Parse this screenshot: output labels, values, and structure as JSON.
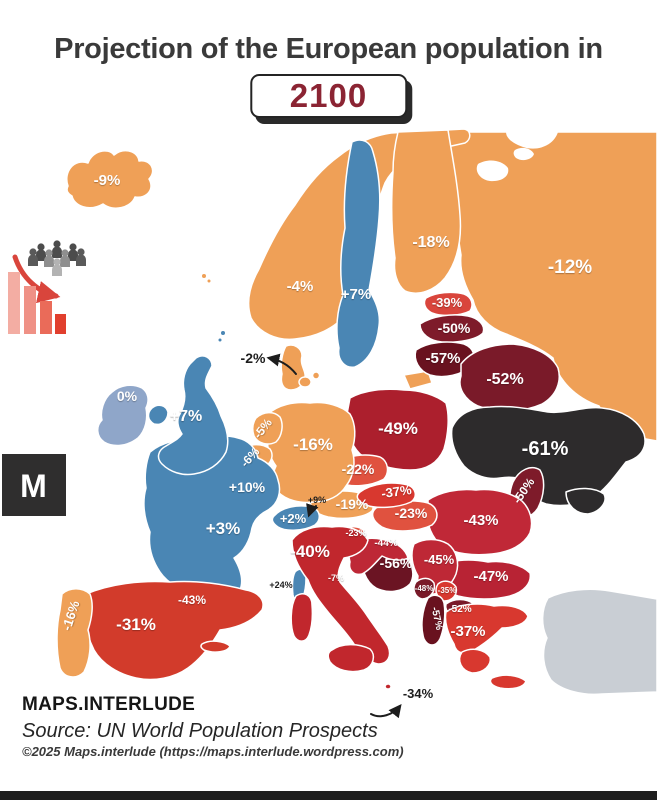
{
  "title": "Projection of the European population in",
  "year_badge": "2100",
  "logo": {
    "letter": "M"
  },
  "footer": {
    "brand": "MAPS.INTERLUDE",
    "source": "Source: UN World Population Prospects",
    "copyright": "©2025 Maps.interlude (https://maps.interlude.wordpress.com)"
  },
  "palette": {
    "growth_blue": "#4A86B4",
    "stable_blue_gray": "#8FA6C9",
    "mild_decline_orange": "#EFA057",
    "decline_red_orange": "#E0523F",
    "decline_red": "#D23B2B",
    "strong_decline_crimson": "#C02837",
    "severe_decline_maroon": "#7A1A29",
    "extreme_decline_black": "#2D2B2C",
    "no_data_gray": "#C9CED4",
    "year_text": "#8B2433",
    "icon_arrow_red": "#D9453C"
  },
  "icons": [
    "population-decline-icon",
    "declining-bars-icon",
    "maps-interlude-logo"
  ],
  "map": {
    "countries": [
      {
        "id": "russia",
        "name": "Russia",
        "label": "-12%",
        "value": -12,
        "color": "#EFA057"
      },
      {
        "id": "norway",
        "name": "Norway",
        "label": "-4%",
        "value": -4,
        "color": "#EFA057"
      },
      {
        "id": "finland",
        "name": "Finland",
        "label": "-18%",
        "value": -18,
        "color": "#EFA057"
      },
      {
        "id": "sweden",
        "name": "Sweden",
        "label": "+7%",
        "value": 7,
        "color": "#4A86B4"
      },
      {
        "id": "kaliningrad",
        "name": "Kaliningrad (Russia)",
        "label": "",
        "value": -12,
        "color": "#EFA057"
      },
      {
        "id": "estonia",
        "name": "Estonia",
        "label": "-39%",
        "value": -39,
        "color": "#D9453C"
      },
      {
        "id": "latvia",
        "name": "Latvia",
        "label": "-50%",
        "value": -50,
        "color": "#7E1B2A"
      },
      {
        "id": "lithuania",
        "name": "Lithuania",
        "label": "-57%",
        "value": -57,
        "color": "#69121F"
      },
      {
        "id": "belarus",
        "name": "Belarus",
        "label": "-52%",
        "value": -52,
        "color": "#7A1A29"
      },
      {
        "id": "poland",
        "name": "Poland",
        "label": "-49%",
        "value": -49,
        "color": "#AC1F2D"
      },
      {
        "id": "ukraine",
        "name": "Ukraine",
        "label": "-61%",
        "value": -61,
        "color": "#2D2B2C"
      },
      {
        "id": "moldova",
        "name": "Moldova",
        "label": "-50%",
        "value": -50,
        "color": "#7E1B2A"
      },
      {
        "id": "romania",
        "name": "Romania",
        "label": "-43%",
        "value": -43,
        "color": "#C02837"
      },
      {
        "id": "bulgaria",
        "name": "Bulgaria",
        "label": "-47%",
        "value": -47,
        "color": "#B82334"
      },
      {
        "id": "turkey",
        "name": "Türkiye (no data)",
        "label": "",
        "value": null,
        "color": "#C9CED4"
      },
      {
        "id": "serbia",
        "name": "Serbia",
        "label": "-45%",
        "value": -45,
        "color": "#BE2836"
      },
      {
        "id": "montenegro",
        "name": "Montenegro",
        "label": "-48%",
        "value": -48,
        "color": "#7A1A29"
      },
      {
        "id": "kosovo",
        "name": "Kosovo",
        "label": "-35%",
        "value": -35,
        "color": "#D8382F"
      },
      {
        "id": "north_macedonia",
        "name": "North Macedonia",
        "label": "-52%",
        "value": -52,
        "color": "#7A1A29"
      },
      {
        "id": "albania",
        "name": "Albania",
        "label": "-57%",
        "value": -57,
        "color": "#69121F"
      },
      {
        "id": "greece",
        "name": "Greece",
        "label": "-37%",
        "value": -37,
        "color": "#D8382F"
      },
      {
        "id": "bosnia",
        "name": "Bosnia and Herzegovina",
        "label": "-56%",
        "value": -56,
        "color": "#6B1423"
      },
      {
        "id": "croatia",
        "name": "Croatia",
        "label": "-44%",
        "value": -44,
        "color": "#BE2836"
      },
      {
        "id": "slovenia",
        "name": "Slovenia",
        "label": "-23%",
        "value": -23,
        "color": "#E0523F"
      },
      {
        "id": "hungary",
        "name": "Hungary",
        "label": "-23%",
        "value": -23,
        "color": "#E0523F"
      },
      {
        "id": "austria",
        "name": "Austria",
        "label": "-19%",
        "value": -19,
        "color": "#EFA057"
      },
      {
        "id": "czechia",
        "name": "Czechia",
        "label": "-22%",
        "value": -22,
        "color": "#E0523F"
      },
      {
        "id": "slovakia",
        "name": "Slovakia",
        "label": "-37%",
        "value": -37,
        "color": "#D8382F"
      },
      {
        "id": "germany",
        "name": "Germany",
        "label": "-16%",
        "value": -16,
        "color": "#EFA057"
      },
      {
        "id": "denmark",
        "name": "Denmark",
        "label": "-2%",
        "value": -2,
        "color": "#EFA057",
        "label_color": "#1d1d1d",
        "arrow": true
      },
      {
        "id": "netherlands",
        "name": "Netherlands",
        "label": "-5%",
        "value": -5,
        "color": "#EFA057"
      },
      {
        "id": "belgium",
        "name": "Belgium",
        "label": "-6%",
        "value": -6,
        "color": "#EFA057"
      },
      {
        "id": "switzerland",
        "name": "Switzerland",
        "label": "+2%",
        "value": 2,
        "color": "#4A86B4"
      },
      {
        "id": "france",
        "name": "France",
        "label": "+3%",
        "value": 3,
        "color": "#4A86B4"
      },
      {
        "id": "luxembourg",
        "name": "Luxembourg",
        "label": "+10%",
        "value": 10,
        "color": "#4A86B4"
      },
      {
        "id": "liechtenstein",
        "name": "Liechtenstein",
        "label": "+9%",
        "value": 9,
        "color": "#4A86B4",
        "label_color": "#1d1d1d",
        "arrow": true
      },
      {
        "id": "uk",
        "name": "United Kingdom",
        "label": "+7%",
        "value": 7,
        "color": "#4A86B4"
      },
      {
        "id": "ireland",
        "name": "Ireland",
        "label": "0%",
        "value": 0,
        "color": "#8FA6C9"
      },
      {
        "id": "italy",
        "name": "Italy",
        "label": "-40%",
        "value": -40,
        "color": "#C1272D"
      },
      {
        "id": "san_marino",
        "name": "San Marino",
        "label": "-7%",
        "value": -7
      },
      {
        "id": "monaco",
        "name": "Monaco",
        "label": "+24%",
        "value": 24,
        "label_color": "#1d1d1d"
      },
      {
        "id": "spain",
        "name": "Spain",
        "label": "-31%",
        "value": -31,
        "color": "#D23B2B"
      },
      {
        "id": "portugal",
        "name": "Portugal",
        "label": "-16%",
        "value": -16,
        "color": "#EFA057"
      },
      {
        "id": "andorra",
        "name": "Andorra",
        "label": "-43%",
        "value": -43
      },
      {
        "id": "malta",
        "name": "Malta",
        "label": "-34%",
        "value": -34,
        "color": "#C1272D",
        "label_color": "#1d1d1d",
        "arrow": true
      },
      {
        "id": "iceland",
        "name": "Iceland",
        "label": "-9%",
        "value": -9,
        "color": "#EFA057"
      }
    ]
  }
}
